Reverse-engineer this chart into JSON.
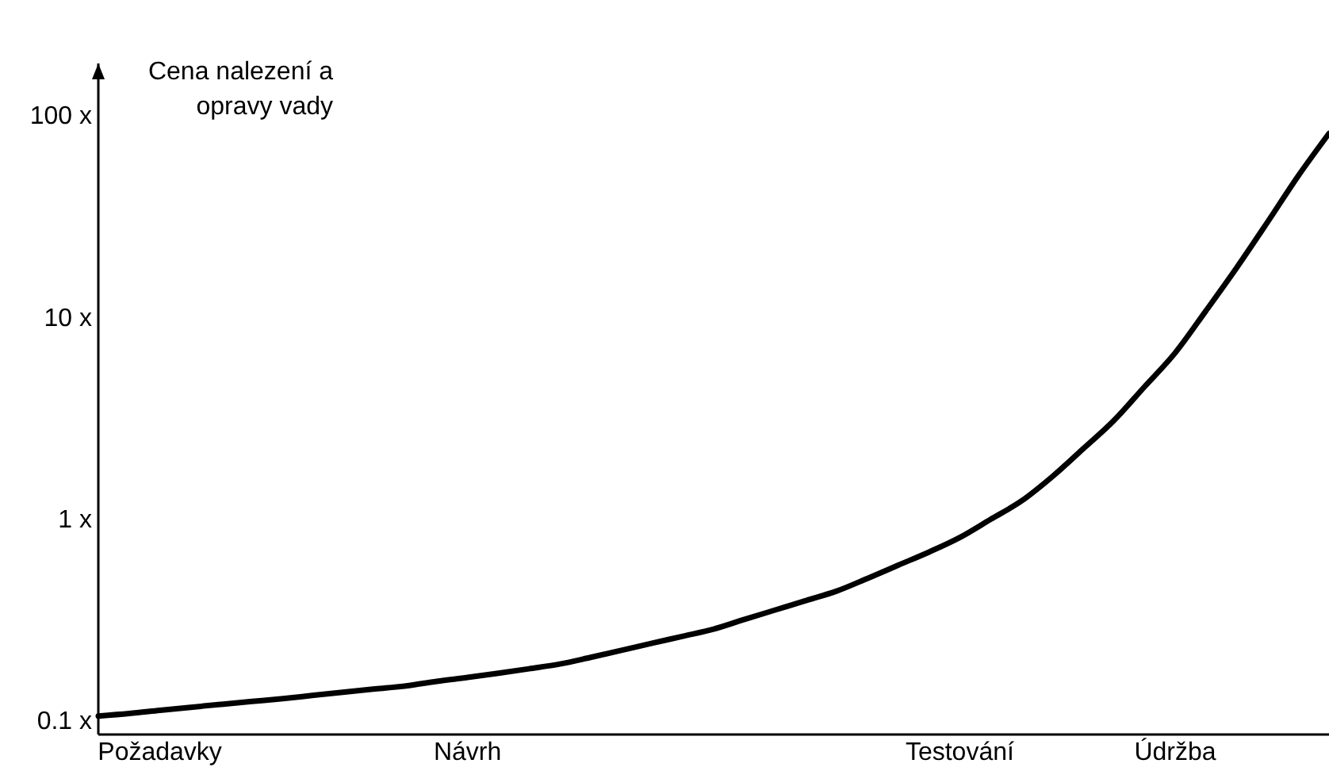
{
  "chart_data": {
    "type": "line",
    "ylabel": "Cena nalezení a opravy vady",
    "log": "y",
    "categories": [
      null,
      null,
      "Požadavky",
      null,
      null,
      null,
      null,
      null,
      null,
      null,
      null,
      null,
      "Návrh",
      null,
      null,
      null,
      null,
      null,
      null,
      null,
      null,
      null,
      null,
      null,
      null,
      null,
      null,
      null,
      "Testování",
      null,
      null,
      null,
      null,
      null,
      null,
      "Údržba",
      null,
      null,
      null,
      null,
      null
    ],
    "series": [
      {
        "color": "#000000",
        "values": [
          0.105,
          0.108,
          0.112,
          0.116,
          0.12,
          0.124,
          0.128,
          0.133,
          0.138,
          0.143,
          0.148,
          0.156,
          0.163,
          0.171,
          0.18,
          0.19,
          0.205,
          0.222,
          0.241,
          0.261,
          0.283,
          0.316,
          0.352,
          0.392,
          0.437,
          0.505,
          0.587,
          0.682,
          0.805,
          0.99,
          1.22,
          1.61,
          2.21,
          3.05,
          4.49,
          6.62,
          10.7,
          17.5,
          29.4,
          49.9,
          81
        ]
      }
    ],
    "ylim": [
      0.085,
      180
    ],
    "yticks": [
      {
        "value": 0.1,
        "label": "0.1 x"
      },
      {
        "value": 1,
        "label": "1 x"
      },
      {
        "value": 10,
        "label": "10 x"
      },
      {
        "value": 100,
        "label": "100 x"
      }
    ],
    "grid": false,
    "marker": "none",
    "line_style": "solid"
  }
}
